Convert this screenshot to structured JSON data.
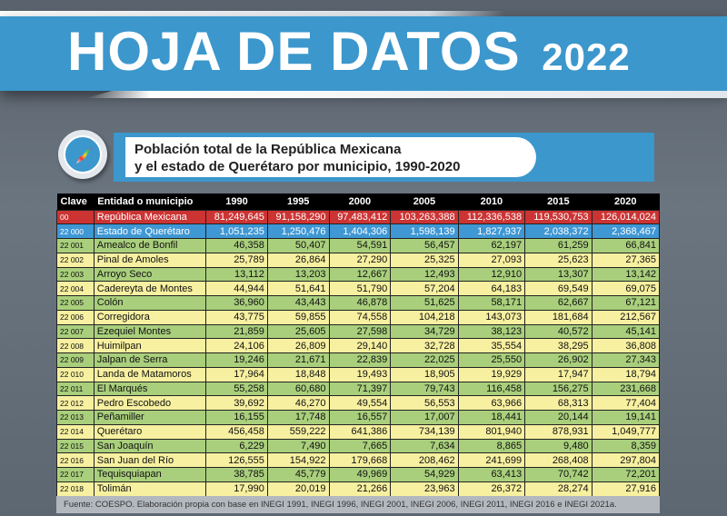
{
  "header": {
    "title": "HOJA DE DATOS",
    "year": "2022"
  },
  "subtitle": {
    "line1": "Población total de la República Mexicana",
    "line2": "y el estado de Querétaro por municipio, 1990-2020"
  },
  "table": {
    "columns": [
      "Clave",
      "Entidad o municipio",
      "1990",
      "1995",
      "2000",
      "2005",
      "2010",
      "2015",
      "2020"
    ],
    "rows": [
      [
        "00",
        "República Mexicana",
        "81,249,645",
        "91,158,290",
        "97,483,412",
        "103,263,388",
        "112,336,538",
        "119,530,753",
        "126,014,024"
      ],
      [
        "22 000",
        "Estado de Querétaro",
        "1,051,235",
        "1,250,476",
        "1,404,306",
        "1,598,139",
        "1,827,937",
        "2,038,372",
        "2,368,467"
      ],
      [
        "22 001",
        "Amealco de Bonfil",
        "46,358",
        "50,407",
        "54,591",
        "56,457",
        "62,197",
        "61,259",
        "66,841"
      ],
      [
        "22 002",
        "Pinal de Amoles",
        "25,789",
        "26,864",
        "27,290",
        "25,325",
        "27,093",
        "25,623",
        "27,365"
      ],
      [
        "22 003",
        "Arroyo Seco",
        "13,112",
        "13,203",
        "12,667",
        "12,493",
        "12,910",
        "13,307",
        "13,142"
      ],
      [
        "22 004",
        "Cadereyta de Montes",
        "44,944",
        "51,641",
        "51,790",
        "57,204",
        "64,183",
        "69,549",
        "69,075"
      ],
      [
        "22 005",
        "Colón",
        "36,960",
        "43,443",
        "46,878",
        "51,625",
        "58,171",
        "62,667",
        "67,121"
      ],
      [
        "22 006",
        "Corregidora",
        "43,775",
        "59,855",
        "74,558",
        "104,218",
        "143,073",
        "181,684",
        "212,567"
      ],
      [
        "22 007",
        "Ezequiel Montes",
        "21,859",
        "25,605",
        "27,598",
        "34,729",
        "38,123",
        "40,572",
        "45,141"
      ],
      [
        "22 008",
        "Huimilpan",
        "24,106",
        "26,809",
        "29,140",
        "32,728",
        "35,554",
        "38,295",
        "36,808"
      ],
      [
        "22 009",
        "Jalpan de Serra",
        "19,246",
        "21,671",
        "22,839",
        "22,025",
        "25,550",
        "26,902",
        "27,343"
      ],
      [
        "22 010",
        "Landa de Matamoros",
        "17,964",
        "18,848",
        "19,493",
        "18,905",
        "19,929",
        "17,947",
        "18,794"
      ],
      [
        "22 011",
        "El Marqués",
        "55,258",
        "60,680",
        "71,397",
        "79,743",
        "116,458",
        "156,275",
        "231,668"
      ],
      [
        "22 012",
        "Pedro Escobedo",
        "39,692",
        "46,270",
        "49,554",
        "56,553",
        "63,966",
        "68,313",
        "77,404"
      ],
      [
        "22 013",
        "Peñamiller",
        "16,155",
        "17,748",
        "16,557",
        "17,007",
        "18,441",
        "20,144",
        "19,141"
      ],
      [
        "22 014",
        "Querétaro",
        "456,458",
        "559,222",
        "641,386",
        "734,139",
        "801,940",
        "878,931",
        "1,049,777"
      ],
      [
        "22 015",
        "San Joaquín",
        "6,229",
        "7,490",
        "7,665",
        "7,634",
        "8,865",
        "9,480",
        "8,359"
      ],
      [
        "22 016",
        "San Juan del Río",
        "126,555",
        "154,922",
        "179,668",
        "208,462",
        "241,699",
        "268,408",
        "297,804"
      ],
      [
        "22 017",
        "Tequisquiapan",
        "38,785",
        "45,779",
        "49,969",
        "54,929",
        "63,413",
        "70,742",
        "72,201"
      ],
      [
        "22 018",
        "Tolimán",
        "17,990",
        "20,019",
        "21,266",
        "23,963",
        "26,372",
        "28,274",
        "27,916"
      ]
    ]
  },
  "footer": "Fuente: COESPO. Elaboración propia con base en INEGI 1991, INEGI 1996, INEGI 2001, INEGI 2006, INEGI 2011, INEGI 2016 e INEGI 2021a.",
  "colors": {
    "banner": "#3b97cc",
    "national_row": "#cc3333",
    "state_row": "#3f97d4",
    "row_green": "#a9cf7c",
    "row_yellow": "#f7f0a0"
  }
}
